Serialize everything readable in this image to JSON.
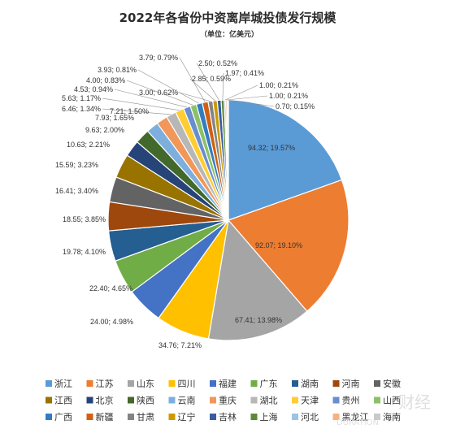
{
  "chart_data": {
    "type": "pie",
    "title": "2022年各省份中资离岸城投债发行规模",
    "subtitle": "（单位：亿美元）",
    "legend_position": "bottom",
    "categories": [
      "浙江",
      "江苏",
      "山东",
      "四川",
      "福建",
      "广东",
      "湖南",
      "河南",
      "安徽",
      "江西",
      "北京",
      "陕西",
      "云南",
      "重庆",
      "湖北",
      "天津",
      "贵州",
      "山西",
      "广西",
      "新疆",
      "甘肃",
      "辽宁",
      "吉林",
      "上海",
      "河北",
      "黑龙江",
      "海南"
    ],
    "values": [
      94.32,
      92.07,
      67.41,
      34.76,
      24.0,
      22.4,
      19.78,
      18.55,
      16.41,
      15.59,
      10.63,
      9.63,
      7.93,
      7.21,
      6.46,
      5.63,
      4.53,
      4.0,
      3.93,
      3.79,
      3.0,
      2.85,
      2.5,
      1.97,
      1.0,
      1.0,
      0.7
    ],
    "percents": [
      "19.57%",
      "19.10%",
      "13.98%",
      "7.21%",
      "4.98%",
      "4.65%",
      "4.10%",
      "3.85%",
      "3.40%",
      "3.23%",
      "2.21%",
      "2.00%",
      "1.65%",
      "1.50%",
      "1.34%",
      "1.17%",
      "0.94%",
      "0.83%",
      "0.81%",
      "0.79%",
      "0.62%",
      "0.59%",
      "0.52%",
      "0.41%",
      "0.21%",
      "0.21%",
      "0.15%"
    ],
    "data_labels": [
      "94.32; 19.57%",
      "92.07; 19.10%",
      "67.41; 13.98%",
      "34.76; 7.21%",
      "24.00; 4.98%",
      "22.40; 4.65%",
      "19.78; 4.10%",
      "18.55; 3.85%",
      "16.41; 3.40%",
      "15.59; 3.23%",
      "10.63; 2.21%",
      "9.63; 2.00%",
      "7.93; 1.65%",
      "7.21; 1.50%",
      "6.46; 1.34%",
      "5.63; 1.17%",
      "4.53; 0.94%",
      "4.00; 0.83%",
      "3.93; 0.81%",
      "3.79; 0.79%",
      "3.00; 0.62%",
      "2.85; 0.59%",
      "2.50; 0.52%",
      "1.97; 0.41%",
      "1.00; 0.21%",
      "1.00; 0.21%",
      "0.70; 0.15%"
    ],
    "colors": [
      "#5b9bd5",
      "#ed7d31",
      "#a5a5a5",
      "#ffc000",
      "#4472c4",
      "#70ad47",
      "#255e91",
      "#9e480e",
      "#636363",
      "#997300",
      "#264478",
      "#43682b",
      "#7cafdd",
      "#f1975a",
      "#b7b7b7",
      "#ffcd33",
      "#698ed0",
      "#8cc168",
      "#327dc2",
      "#d26012",
      "#848484",
      "#cc9a00",
      "#3a5ca0",
      "#5a8a39",
      "#9dc3e6",
      "#f4b183",
      "#c9c9c9"
    ]
  },
  "watermark": {
    "line1": "财经",
    "line2": "DURATION"
  }
}
